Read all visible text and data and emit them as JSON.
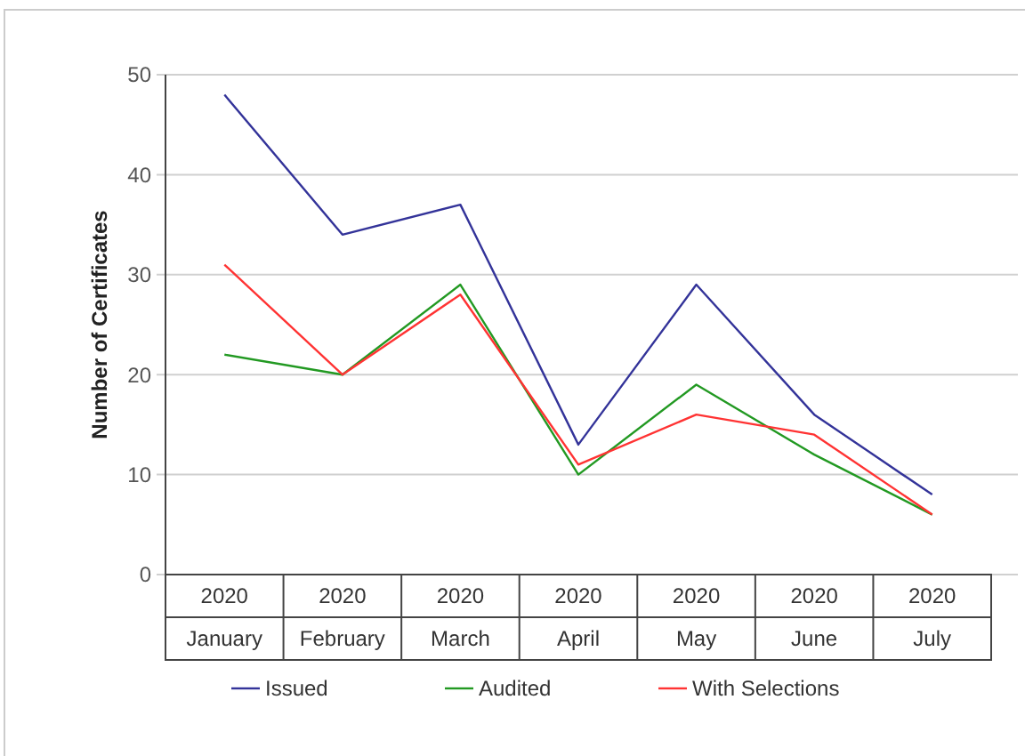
{
  "chart_data": {
    "type": "line",
    "ylabel": "Number of Certificates",
    "categories": [
      "2020\nJanuary",
      "2020\nFebruary",
      "2020\nMarch",
      "2020\nApril",
      "2020\nMay",
      "2020\nJune",
      "2020\nJuly"
    ],
    "series": [
      {
        "name": "Issued",
        "color": "#333399",
        "values": [
          48,
          34,
          37,
          13,
          29,
          16,
          8
        ]
      },
      {
        "name": "Audited",
        "color": "#229922",
        "values": [
          22,
          20,
          29,
          10,
          19,
          12,
          6
        ]
      },
      {
        "name": "With Selections",
        "color": "#ff3333",
        "values": [
          31,
          20,
          28,
          11,
          16,
          14,
          6
        ]
      }
    ],
    "ylim": [
      0,
      50
    ],
    "yticks": [
      0,
      10,
      20,
      30,
      40,
      50
    ],
    "grid": "y",
    "legend": "bottom",
    "marker": "none",
    "line_style": "solid"
  }
}
